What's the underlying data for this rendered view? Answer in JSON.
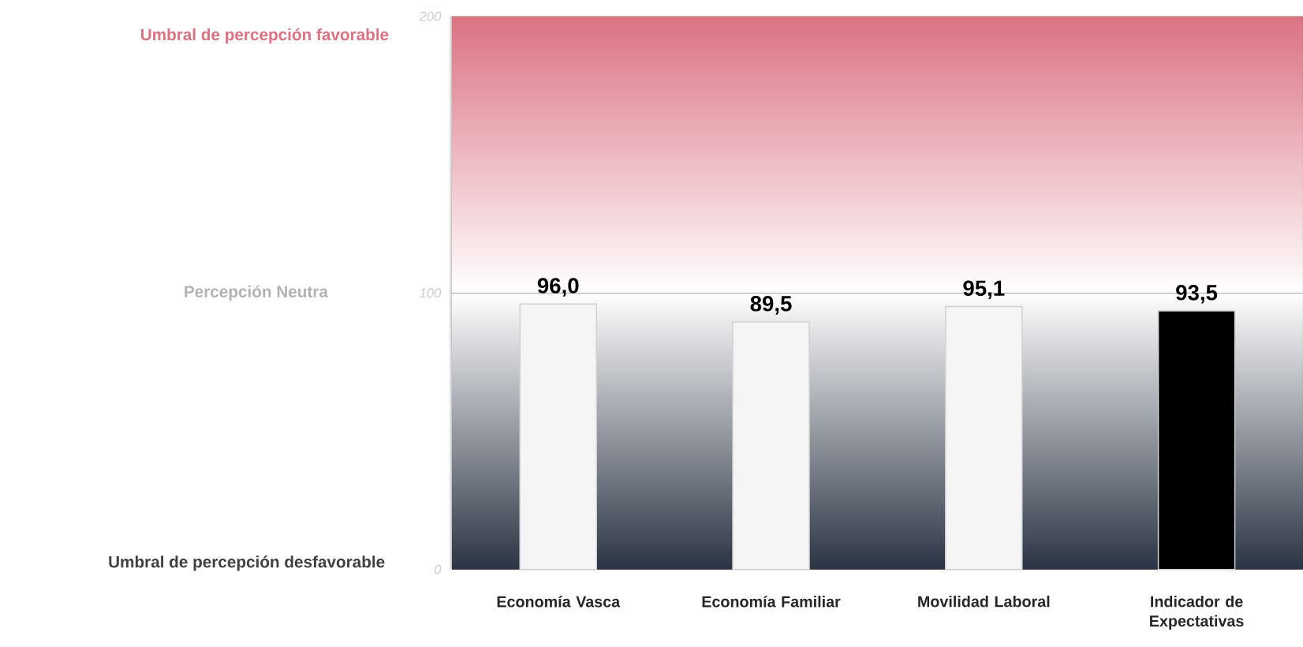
{
  "chart_data": {
    "type": "bar",
    "categories": [
      "Economía Vasca",
      "Economía Familiar",
      "Movilidad Laboral",
      "Indicador de Expectativas"
    ],
    "values": [
      96.0,
      89.5,
      95.1,
      93.5
    ],
    "colors": [
      "#f5f5f5",
      "#f5f5f5",
      "#f5f5f5",
      "#000000"
    ],
    "value_labels": [
      "96,0",
      "89,5",
      "95,1",
      "93,5"
    ],
    "ylim": [
      0,
      200
    ],
    "yticks": [
      0,
      100,
      200
    ],
    "bands": [
      {
        "axis": "y",
        "from": 100,
        "to": 200,
        "color": "#db7282"
      },
      {
        "axis": "y",
        "from": 0,
        "to": 100,
        "color": "#2b3444"
      }
    ],
    "annotations": [
      "Umbral de percepción favorable",
      "Percepción Neutra",
      "Umbral de percepción desfavorable"
    ]
  }
}
